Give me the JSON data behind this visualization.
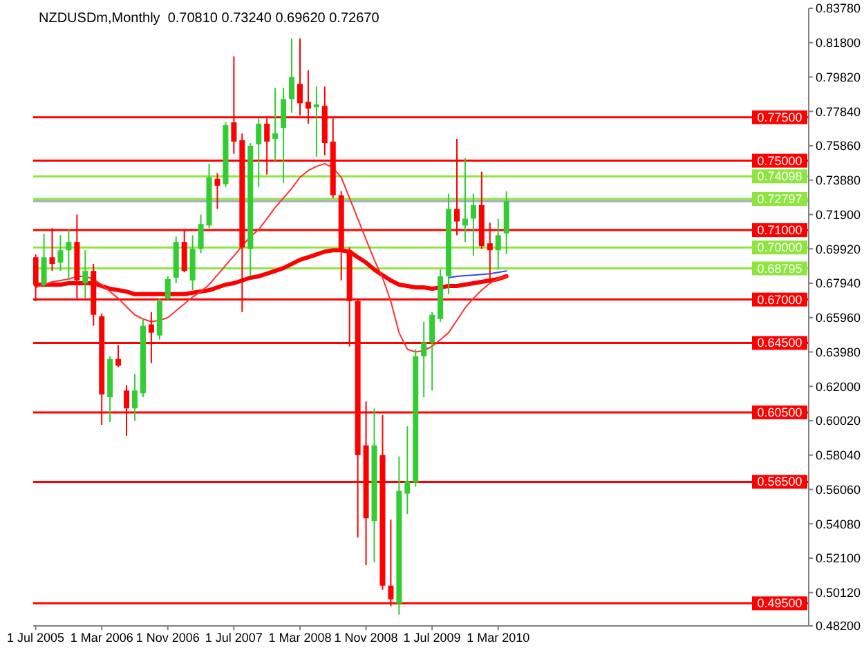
{
  "chart_data": {
    "type": "candlestick",
    "title": "NZDUSDm,Monthly  0.70810 0.73240 0.69620 0.72670",
    "x": [
      "2005-07",
      "2005-08",
      "2005-09",
      "2005-10",
      "2005-11",
      "2005-12",
      "2006-01",
      "2006-02",
      "2006-03",
      "2006-04",
      "2006-05",
      "2006-06",
      "2006-07",
      "2006-08",
      "2006-09",
      "2006-10",
      "2006-11",
      "2006-12",
      "2007-01",
      "2007-02",
      "2007-03",
      "2007-04",
      "2007-05",
      "2007-06",
      "2007-07",
      "2007-08",
      "2007-09",
      "2007-10",
      "2007-11",
      "2007-12",
      "2008-01",
      "2008-02",
      "2008-03",
      "2008-04",
      "2008-05",
      "2008-06",
      "2008-07",
      "2008-08",
      "2008-09",
      "2008-10",
      "2008-11",
      "2008-12",
      "2009-01",
      "2009-02",
      "2009-03",
      "2009-04",
      "2009-05",
      "2009-06",
      "2009-07",
      "2009-08",
      "2009-09",
      "2009-10",
      "2009-11",
      "2009-12",
      "2010-01",
      "2010-02",
      "2010-03",
      "2010-04"
    ],
    "ohlc": [
      [
        0.6944,
        0.696,
        0.6691,
        0.6786
      ],
      [
        0.6786,
        0.7079,
        0.6778,
        0.6944
      ],
      [
        0.6944,
        0.7111,
        0.6865,
        0.6905
      ],
      [
        0.6913,
        0.7071,
        0.6865,
        0.6984
      ],
      [
        0.6984,
        0.7103,
        0.681,
        0.7032
      ],
      [
        0.7032,
        0.719,
        0.6707,
        0.681
      ],
      [
        0.6794,
        0.6984,
        0.6707,
        0.6865
      ],
      [
        0.6865,
        0.6905,
        0.6549,
        0.6612
      ],
      [
        0.6604,
        0.662,
        0.5978,
        0.6153
      ],
      [
        0.6137,
        0.6374,
        0.5994,
        0.6358
      ],
      [
        0.6358,
        0.6438,
        0.6311,
        0.6319
      ],
      [
        0.6176,
        0.6208,
        0.5915,
        0.6073
      ],
      [
        0.6073,
        0.6271,
        0.6002,
        0.6176
      ],
      [
        0.616,
        0.6588,
        0.6137,
        0.6549
      ],
      [
        0.6557,
        0.6628,
        0.6334,
        0.6509
      ],
      [
        0.6493,
        0.6707,
        0.6469,
        0.6691
      ],
      [
        0.6707,
        0.6834,
        0.6691,
        0.6818
      ],
      [
        0.6826,
        0.7063,
        0.6794,
        0.7032
      ],
      [
        0.7032,
        0.7103,
        0.6857,
        0.6865
      ],
      [
        0.681,
        0.7071,
        0.6754,
        0.6992
      ],
      [
        0.6992,
        0.719,
        0.6968,
        0.7135
      ],
      [
        0.7127,
        0.7483,
        0.7111,
        0.7404
      ],
      [
        0.7396,
        0.7428,
        0.7222,
        0.7356
      ],
      [
        0.7364,
        0.7721,
        0.7348,
        0.7705
      ],
      [
        0.7721,
        0.8101,
        0.7539,
        0.761
      ],
      [
        0.7618,
        0.7657,
        0.6628,
        0.7
      ],
      [
        0.6992,
        0.7602,
        0.6834,
        0.7586
      ],
      [
        0.7594,
        0.7744,
        0.7348,
        0.7713
      ],
      [
        0.7713,
        0.7744,
        0.742,
        0.761
      ],
      [
        0.7626,
        0.7919,
        0.7499,
        0.7657
      ],
      [
        0.7689,
        0.7919,
        0.7372,
        0.7855
      ],
      [
        0.7855,
        0.8204,
        0.7776,
        0.7982
      ],
      [
        0.7942,
        0.8204,
        0.776,
        0.7831
      ],
      [
        0.7839,
        0.8022,
        0.7713,
        0.78
      ],
      [
        0.7808,
        0.7927,
        0.7523,
        0.7824
      ],
      [
        0.7816,
        0.7927,
        0.7531,
        0.7602
      ],
      [
        0.761,
        0.7744,
        0.7285,
        0.7301
      ],
      [
        0.7301,
        0.7325,
        0.681,
        0.6992
      ],
      [
        0.6984,
        0.7,
        0.643,
        0.6691
      ],
      [
        0.6691,
        0.6707,
        0.5329,
        0.5804
      ],
      [
        0.586,
        0.6113,
        0.517,
        0.544
      ],
      [
        0.5424,
        0.6073,
        0.5186,
        0.586
      ],
      [
        0.5804,
        0.6034,
        0.5028,
        0.5052
      ],
      [
        0.5052,
        0.5432,
        0.4933,
        0.4973
      ],
      [
        0.4949,
        0.5796,
        0.4885,
        0.5598
      ],
      [
        0.5582,
        0.597,
        0.5464,
        0.5654
      ],
      [
        0.5646,
        0.6414,
        0.5622,
        0.6374
      ],
      [
        0.6374,
        0.6572,
        0.6137,
        0.6453
      ],
      [
        0.6453,
        0.6628,
        0.6176,
        0.6612
      ],
      [
        0.6588,
        0.6873,
        0.6572,
        0.6834
      ],
      [
        0.6834,
        0.7309,
        0.6731,
        0.7222
      ],
      [
        0.7222,
        0.7626,
        0.7071,
        0.715
      ],
      [
        0.7127,
        0.7515,
        0.7032,
        0.7166
      ],
      [
        0.7166,
        0.7309,
        0.6952,
        0.7245
      ],
      [
        0.7245,
        0.7436,
        0.6992,
        0.7008
      ],
      [
        0.7024,
        0.7143,
        0.6794,
        0.6984
      ],
      [
        0.6984,
        0.7166,
        0.6873,
        0.7071
      ],
      [
        0.7081,
        0.7324,
        0.6962,
        0.7267
      ]
    ],
    "colors": [
      "#ff0000",
      "#32cd32",
      "#ff0000",
      "#32cd32",
      "#32cd32",
      "#ff0000",
      "#32cd32",
      "#ff0000",
      "#ff0000",
      "#32cd32",
      "#ff0000",
      "#ff0000",
      "#32cd32",
      "#32cd32",
      "#ff0000",
      "#32cd32",
      "#32cd32",
      "#32cd32",
      "#ff0000",
      "#32cd32",
      "#32cd32",
      "#32cd32",
      "#ff0000",
      "#32cd32",
      "#ff0000",
      "#ff0000",
      "#32cd32",
      "#32cd32",
      "#ff0000",
      "#32cd32",
      "#32cd32",
      "#32cd32",
      "#ff0000",
      "#ff0000",
      "#32cd32",
      "#ff0000",
      "#ff0000",
      "#ff0000",
      "#ff0000",
      "#ff0000",
      "#ff0000",
      "#32cd32",
      "#ff0000",
      "#ff0000",
      "#32cd32",
      "#32cd32",
      "#32cd32",
      "#32cd32",
      "#32cd32",
      "#32cd32",
      "#32cd32",
      "#ff0000",
      "#32cd32",
      "#32cd32",
      "#ff0000",
      "#ff0000",
      "#32cd32",
      "#32cd32"
    ],
    "series": [
      {
        "type": "line",
        "color": "#ff0000",
        "values": [
          0.6786,
          0.6786,
          0.6786,
          0.6786,
          0.6794,
          0.6794,
          0.6794,
          0.6794,
          0.6778,
          0.6762,
          0.6754,
          0.6746,
          0.6731,
          0.6731,
          0.6731,
          0.6731,
          0.6731,
          0.6731,
          0.6731,
          0.6739,
          0.6746,
          0.6754,
          0.677,
          0.6786,
          0.6794,
          0.681,
          0.6826,
          0.6834,
          0.6849,
          0.6865,
          0.6881,
          0.6905,
          0.6929,
          0.6944,
          0.696,
          0.6976,
          0.6984,
          0.6984,
          0.6976,
          0.6944,
          0.6913,
          0.6873,
          0.6841,
          0.681,
          0.6786,
          0.6778,
          0.677,
          0.677,
          0.6762,
          0.677,
          0.6778,
          0.6778,
          0.6786,
          0.6794,
          0.6802,
          0.681,
          0.6818,
          0.6834
        ]
      },
      {
        "type": "line",
        "color": "#ff3030",
        "values": [
          0.677,
          0.6786,
          0.6802,
          0.681,
          0.6818,
          0.6834,
          0.6834,
          0.6818,
          0.6786,
          0.6746,
          0.6707,
          0.6659,
          0.6612,
          0.6588,
          0.6572,
          0.658,
          0.6596,
          0.6636,
          0.6675,
          0.6715,
          0.6746,
          0.6786,
          0.6841,
          0.6897,
          0.6952,
          0.7008,
          0.7063,
          0.7103,
          0.7166,
          0.723,
          0.7285,
          0.734,
          0.7404,
          0.7443,
          0.7467,
          0.7483,
          0.7459,
          0.7404,
          0.7285,
          0.7166,
          0.7047,
          0.6929,
          0.6826,
          0.6691,
          0.6509,
          0.6414,
          0.6398,
          0.6406,
          0.643,
          0.6469,
          0.6509,
          0.658,
          0.6652,
          0.6707,
          0.6754,
          0.6794,
          0.6818,
          0.6834
        ]
      },
      {
        "type": "line",
        "color": "#3344ff",
        "values": [
          null,
          null,
          null,
          null,
          null,
          null,
          null,
          null,
          null,
          null,
          null,
          null,
          null,
          null,
          null,
          null,
          null,
          null,
          null,
          null,
          null,
          null,
          null,
          null,
          null,
          null,
          null,
          null,
          null,
          null,
          null,
          null,
          null,
          null,
          null,
          null,
          null,
          null,
          null,
          null,
          null,
          null,
          null,
          null,
          null,
          null,
          null,
          null,
          null,
          null,
          0.6826,
          0.6834,
          0.6838,
          0.6841,
          0.6845,
          0.6849,
          0.6857,
          0.6865
        ]
      }
    ],
    "xlim": [
      "2005-06-22",
      "2013-04-19"
    ],
    "xticks": [
      {
        "value": "2005-07",
        "label": "1 Jul 2005"
      },
      {
        "value": "2006-03",
        "label": "1 Mar 2006"
      },
      {
        "value": "2006-11",
        "label": "1 Nov 2006"
      },
      {
        "value": "2007-07",
        "label": "1 Jul 2007"
      },
      {
        "value": "2008-03",
        "label": "1 Mar 2008"
      },
      {
        "value": "2008-11",
        "label": "1 Nov 2008"
      },
      {
        "value": "2009-07",
        "label": "1 Jul 2009"
      },
      {
        "value": "2010-03",
        "label": "1 Mar 2010"
      }
    ],
    "ylim": [
      0.482,
      0.8378
    ],
    "yticks": [
      {
        "value": 0.8378,
        "label": "0.83780"
      },
      {
        "value": 0.818,
        "label": "0.81800"
      },
      {
        "value": 0.7982,
        "label": "0.79820"
      },
      {
        "value": 0.7784,
        "label": "0.77840"
      },
      {
        "value": 0.7586,
        "label": "0.75860"
      },
      {
        "value": 0.7388,
        "label": "0.73880"
      },
      {
        "value": 0.719,
        "label": "0.71900"
      },
      {
        "value": 0.6992,
        "label": "0.69920"
      },
      {
        "value": 0.6794,
        "label": "0.67940"
      },
      {
        "value": 0.6596,
        "label": "0.65960"
      },
      {
        "value": 0.6398,
        "label": "0.63980"
      },
      {
        "value": 0.62,
        "label": "0.62000"
      },
      {
        "value": 0.6002,
        "label": "0.60020"
      },
      {
        "value": 0.5804,
        "label": "0.58040"
      },
      {
        "value": 0.5606,
        "label": "0.56060"
      },
      {
        "value": 0.5408,
        "label": "0.54080"
      },
      {
        "value": 0.521,
        "label": "0.52100"
      },
      {
        "value": 0.5012,
        "label": "0.50120"
      },
      {
        "value": 0.482,
        "label": "0.48200"
      }
    ],
    "ref_lines": [
      {
        "axis": "y",
        "value": 0.775,
        "label": "0.77500",
        "color": "#ff0000"
      },
      {
        "axis": "y",
        "value": 0.75,
        "label": "0.75000",
        "color": "#ff0000"
      },
      {
        "axis": "y",
        "value": 0.74098,
        "label": "0.74098",
        "color": "#8ee53f"
      },
      {
        "axis": "y",
        "value": 0.72797,
        "label": "0.72797",
        "color": "#8ee53f"
      },
      {
        "axis": "y",
        "value": 0.7267,
        "color": "#a3a8c8"
      },
      {
        "axis": "y",
        "value": 0.71,
        "label": "0.71000",
        "color": "#ff0000"
      },
      {
        "axis": "y",
        "value": 0.7,
        "label": "0.70000",
        "color": "#8ee53f"
      },
      {
        "axis": "y",
        "value": 0.68795,
        "label": "0.68795",
        "color": "#8ee53f"
      },
      {
        "axis": "y",
        "value": 0.67,
        "label": "0.67000",
        "color": "#ff0000"
      },
      {
        "axis": "y",
        "value": 0.645,
        "label": "0.64500",
        "color": "#ff0000"
      },
      {
        "axis": "y",
        "value": 0.605,
        "label": "0.60500",
        "color": "#ff0000"
      },
      {
        "axis": "y",
        "value": 0.565,
        "label": "0.56500",
        "color": "#ff0000"
      },
      {
        "axis": "y",
        "value": 0.495,
        "label": "0.49500",
        "color": "#ff0000"
      }
    ]
  }
}
